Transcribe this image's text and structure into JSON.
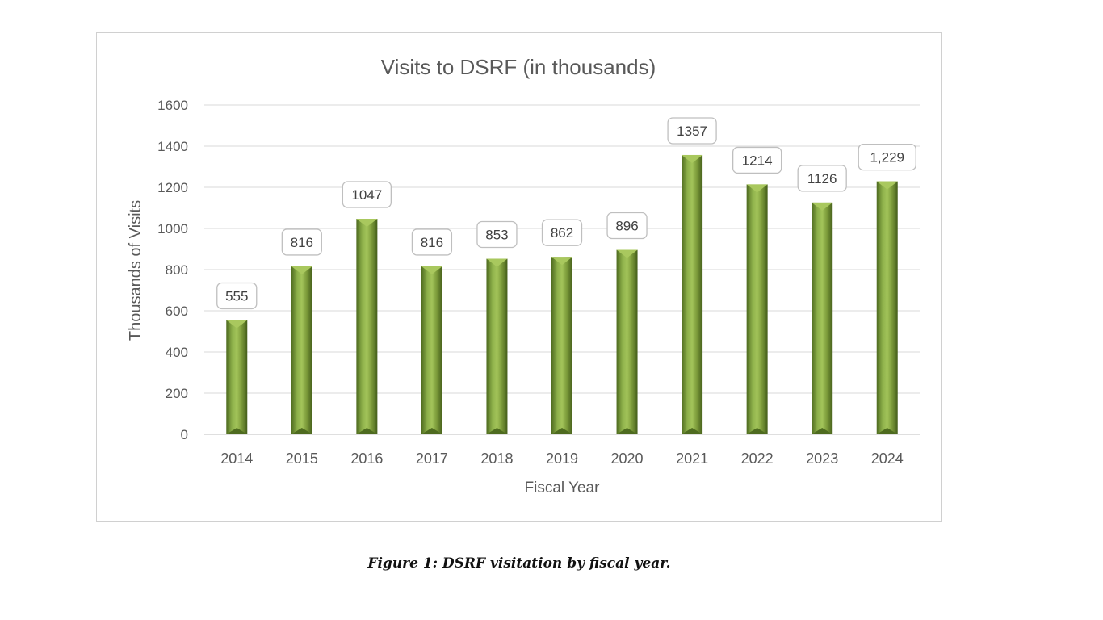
{
  "chart_data": {
    "type": "bar",
    "title": "Visits to DSRF (in thousands)",
    "xlabel": "Fiscal Year",
    "ylabel": "Thousands of Visits",
    "categories": [
      "2014",
      "2015",
      "2016",
      "2017",
      "2018",
      "2019",
      "2020",
      "2021",
      "2022",
      "2023",
      "2024"
    ],
    "values": [
      555,
      816,
      1047,
      816,
      853,
      862,
      896,
      1357,
      1214,
      1126,
      1229
    ],
    "data_labels": [
      "555",
      "816",
      "1047",
      "816",
      "853",
      "862",
      "896",
      "1357",
      "1214",
      "1126",
      "1,229"
    ],
    "y_ticks": [
      "0",
      "200",
      "400",
      "600",
      "800",
      "1000",
      "1200",
      "1400",
      "1600"
    ],
    "ylim": [
      0,
      1600
    ],
    "grid": true,
    "legend": "none",
    "bar_color": "#7a9a3a",
    "bar_highlight": "#a9c85e",
    "bar_shadow": "#4e6b1f"
  },
  "caption": "Figure 1: DSRF visitation by fiscal year."
}
